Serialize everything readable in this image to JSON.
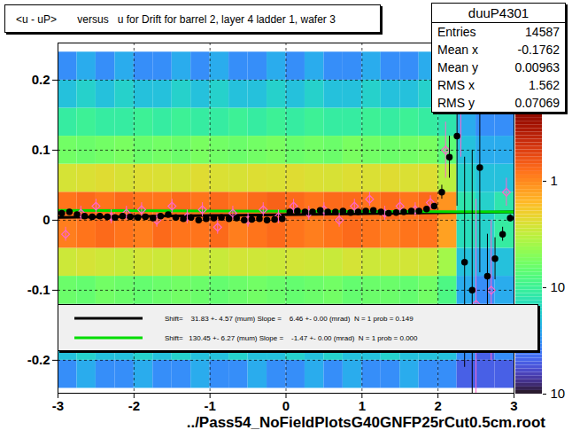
{
  "chart_data": {
    "type": "scatter",
    "title": "<u - uP>       versus   u for Drift for barrel 2, layer 4 ladder 1, wafer 3",
    "caption": "../Pass54_NoFieldPlotsG40GNFP25rCut0.5cm.root",
    "xlim": [
      -3,
      3
    ],
    "xticks": [
      -3,
      -2,
      -1,
      0,
      1,
      2,
      3
    ],
    "ylim": [
      -0.247,
      0.253
    ],
    "yticks": [
      -0.2,
      -0.1,
      0,
      0.1,
      0.2
    ],
    "grid": true,
    "legend": "bottom",
    "stats_box": {
      "title": "duuP4301",
      "rows": [
        {
          "label": "Entries",
          "value": 14587
        },
        {
          "label": "Mean x",
          "value": -0.1762
        },
        {
          "label": "Mean y",
          "value": 0.00963
        },
        {
          "label": "RMS x",
          "value": 1.562
        },
        {
          "label": "RMS y",
          "value": 0.07069
        }
      ]
    },
    "heatmap": {
      "x_bins": [
        -3,
        -2.75,
        -2.5,
        -2.25,
        -2,
        -1.75,
        -1.5,
        -1.25,
        -1,
        -0.75,
        -0.5,
        -0.25,
        0,
        0.25,
        0.5,
        0.75,
        1,
        1.25,
        1.5,
        1.75,
        2,
        2.25,
        2.5,
        2.75,
        3
      ],
      "y_bins": [
        -0.24,
        -0.2,
        -0.16,
        -0.12,
        -0.08,
        -0.04,
        0,
        0.04,
        0.08,
        0.12,
        0.16,
        0.2,
        0.24
      ],
      "counts": [
        [
          0.03,
          0.04,
          0.03,
          0.03,
          0.04,
          0.03,
          0.03,
          0.04,
          0.03,
          0.03,
          0.04,
          0.03,
          0.03,
          0.04,
          0.03,
          0.04,
          0.03,
          0.03,
          0.04,
          0.03,
          0.03,
          0.02,
          0.02,
          0.02
        ],
        [
          0.05,
          0.06,
          0.05,
          0.05,
          0.06,
          0.05,
          0.06,
          0.05,
          0.05,
          0.06,
          0.05,
          0.05,
          0.06,
          0.05,
          0.06,
          0.05,
          0.05,
          0.06,
          0.05,
          0.05,
          0.05,
          0.03,
          0.02,
          0.03
        ],
        [
          0.09,
          0.08,
          0.09,
          0.08,
          0.09,
          0.09,
          0.08,
          0.09,
          0.08,
          0.09,
          0.09,
          0.08,
          0.09,
          0.08,
          0.09,
          0.09,
          0.08,
          0.09,
          0.08,
          0.09,
          0.07,
          0.03,
          0.03,
          0.03
        ],
        [
          0.16,
          0.15,
          0.17,
          0.16,
          0.15,
          0.16,
          0.17,
          0.16,
          0.15,
          0.16,
          0.17,
          0.16,
          0.15,
          0.16,
          0.17,
          0.15,
          0.16,
          0.16,
          0.15,
          0.17,
          0.12,
          0.04,
          0.03,
          0.04
        ],
        [
          0.35,
          0.38,
          0.36,
          0.34,
          0.37,
          0.35,
          0.38,
          0.36,
          0.34,
          0.37,
          0.36,
          0.35,
          0.37,
          0.36,
          0.34,
          0.38,
          0.35,
          0.36,
          0.37,
          0.35,
          0.25,
          0.05,
          0.04,
          0.05
        ],
        [
          1.1,
          1.2,
          1.3,
          1.2,
          1.1,
          1.3,
          1.2,
          1.2,
          1.3,
          1.1,
          1.2,
          1.3,
          1.2,
          1.1,
          1.2,
          1.3,
          1.2,
          1.1,
          1.2,
          1.2,
          0.8,
          0.07,
          0.06,
          0.09
        ],
        [
          1.2,
          1.3,
          1.2,
          1.3,
          1.2,
          1.2,
          1.3,
          1.2,
          1.3,
          1.2,
          1.3,
          1.4,
          1.3,
          1.2,
          1.3,
          1.3,
          1.2,
          1.3,
          1.2,
          1.3,
          0.9,
          0.08,
          0.06,
          0.08
        ],
        [
          0.38,
          0.4,
          0.42,
          0.39,
          0.41,
          0.4,
          0.38,
          0.42,
          0.4,
          0.39,
          0.41,
          0.4,
          0.42,
          0.4,
          0.39,
          0.41,
          0.4,
          0.42,
          0.4,
          0.41,
          0.3,
          0.06,
          0.05,
          0.05
        ],
        [
          0.17,
          0.16,
          0.17,
          0.18,
          0.16,
          0.17,
          0.16,
          0.18,
          0.17,
          0.16,
          0.17,
          0.18,
          0.16,
          0.17,
          0.16,
          0.18,
          0.17,
          0.16,
          0.17,
          0.18,
          0.14,
          0.05,
          0.04,
          0.04
        ],
        [
          0.09,
          0.1,
          0.09,
          0.09,
          0.1,
          0.09,
          0.1,
          0.09,
          0.09,
          0.1,
          0.09,
          0.1,
          0.09,
          0.1,
          0.09,
          0.09,
          0.1,
          0.09,
          0.1,
          0.09,
          0.08,
          0.04,
          0.03,
          0.03
        ],
        [
          0.05,
          0.06,
          0.05,
          0.06,
          0.05,
          0.05,
          0.06,
          0.05,
          0.06,
          0.05,
          0.05,
          0.06,
          0.05,
          0.06,
          0.05,
          0.05,
          0.06,
          0.05,
          0.05,
          0.06,
          0.05,
          0.03,
          0.02,
          0.03
        ],
        [
          0.03,
          0.04,
          0.03,
          0.04,
          0.03,
          0.03,
          0.04,
          0.03,
          0.04,
          0.03,
          0.03,
          0.04,
          0.03,
          0.04,
          0.03,
          0.03,
          0.04,
          0.03,
          0.03,
          0.04,
          0.03,
          0.02,
          0.02,
          0.02
        ]
      ]
    },
    "colorbar": {
      "lim": [
        0.01,
        5
      ],
      "log": true,
      "ticks": [
        {
          "value": 1,
          "label": "1"
        },
        {
          "value": 0.1,
          "label": "10"
        },
        {
          "value": 0.01,
          "label": "10"
        }
      ]
    },
    "series": [
      {
        "type": "line",
        "name": "Shift=    31.83 +- 4.57 (mum) Slope =    6.46 +- 0.00 (mrad)  N = 1 prob = 0.149",
        "color": "#000000",
        "x": [
          -3,
          3
        ],
        "values": [
          0.004,
          0.012
        ]
      },
      {
        "type": "line",
        "name": "Shift=   130.45 +- 6.27 (mum) Slope =    -1.47 +- 0.00 (mrad)  N = 1 prob = 0.000",
        "color": "#00dd00",
        "x": [
          -3,
          3
        ],
        "values": [
          0.014,
          0.012
        ]
      },
      {
        "type": "scatter",
        "color": "#ff66cc",
        "marker": "diamond",
        "x": [
          -2.9,
          -2.7,
          -2.5,
          -2.3,
          -2.1,
          -1.9,
          -1.7,
          -1.5,
          -1.3,
          -1.1,
          -0.9,
          -0.7,
          -0.5,
          -0.3,
          -0.1,
          0.1,
          0.3,
          0.5,
          0.7,
          0.9,
          1.1,
          1.3,
          1.5,
          1.7,
          1.9,
          2.1,
          2.3,
          2.5,
          2.7,
          2.9
        ],
        "values": [
          -0.02,
          0.01,
          0.02,
          0.005,
          0.01,
          0.015,
          0.0,
          0.02,
          0.005,
          0.015,
          -0.01,
          0.01,
          0.0,
          0.015,
          0.005,
          0.02,
          0.01,
          0.015,
          0.0,
          0.02,
          0.03,
          0.01,
          0.02,
          0.015,
          0.025,
          0.1,
          0.19,
          -0.12,
          -0.1,
          0.04
        ],
        "errors": [
          0.01,
          0.01,
          0.01,
          0.01,
          0.01,
          0.01,
          0.01,
          0.01,
          0.01,
          0.01,
          0.01,
          0.01,
          0.01,
          0.01,
          0.01,
          0.01,
          0.01,
          0.01,
          0.01,
          0.01,
          0.01,
          0.01,
          0.01,
          0.01,
          0.01,
          0.04,
          0.1,
          0.15,
          0.1,
          0.02
        ]
      },
      {
        "type": "scatter",
        "color": "#000000",
        "marker": "circle",
        "x": [
          -2.95,
          -2.85,
          -2.75,
          -2.65,
          -2.55,
          -2.45,
          -2.35,
          -2.25,
          -2.15,
          -2.05,
          -1.95,
          -1.85,
          -1.75,
          -1.65,
          -1.55,
          -1.45,
          -1.35,
          -1.25,
          -1.15,
          -1.05,
          -0.95,
          -0.85,
          -0.75,
          -0.65,
          -0.55,
          -0.45,
          -0.35,
          -0.25,
          -0.15,
          -0.05,
          0.05,
          0.15,
          0.25,
          0.35,
          0.45,
          0.55,
          0.65,
          0.75,
          0.85,
          0.95,
          1.05,
          1.15,
          1.25,
          1.35,
          1.45,
          1.55,
          1.65,
          1.75,
          1.85,
          1.95,
          2.05,
          2.15,
          2.25,
          2.35,
          2.45,
          2.55,
          2.65,
          2.75,
          2.85,
          2.95
        ],
        "values": [
          0.01,
          0.012,
          0.008,
          0.006,
          0.005,
          0.006,
          0.005,
          0.004,
          0.006,
          0.005,
          0.004,
          0.005,
          0.003,
          0.006,
          0.008,
          0.004,
          0.002,
          0.004,
          0.0,
          0.002,
          0.003,
          0.004,
          0.002,
          0.003,
          0.0,
          0.001,
          0.002,
          0.0,
          0.001,
          0.002,
          0.012,
          0.013,
          0.012,
          0.012,
          0.014,
          0.012,
          0.012,
          0.013,
          0.011,
          0.012,
          0.013,
          0.014,
          0.012,
          0.01,
          0.011,
          0.012,
          0.013,
          0.013,
          0.016,
          0.02,
          0.04,
          0.09,
          0.12,
          -0.06,
          -0.1,
          0.075,
          -0.08,
          -0.055,
          -0.02,
          0.003
        ],
        "errors": [
          0.003,
          0.003,
          0.003,
          0.003,
          0.003,
          0.003,
          0.003,
          0.003,
          0.003,
          0.003,
          0.003,
          0.003,
          0.003,
          0.003,
          0.003,
          0.003,
          0.003,
          0.003,
          0.003,
          0.003,
          0.003,
          0.003,
          0.003,
          0.003,
          0.003,
          0.003,
          0.003,
          0.003,
          0.003,
          0.003,
          0.003,
          0.003,
          0.003,
          0.003,
          0.003,
          0.003,
          0.003,
          0.003,
          0.003,
          0.003,
          0.003,
          0.003,
          0.003,
          0.003,
          0.003,
          0.003,
          0.003,
          0.003,
          0.003,
          0.004,
          0.01,
          0.03,
          0.1,
          0.15,
          0.2,
          0.15,
          0.06,
          0.03,
          0.01,
          0.005
        ]
      }
    ]
  }
}
